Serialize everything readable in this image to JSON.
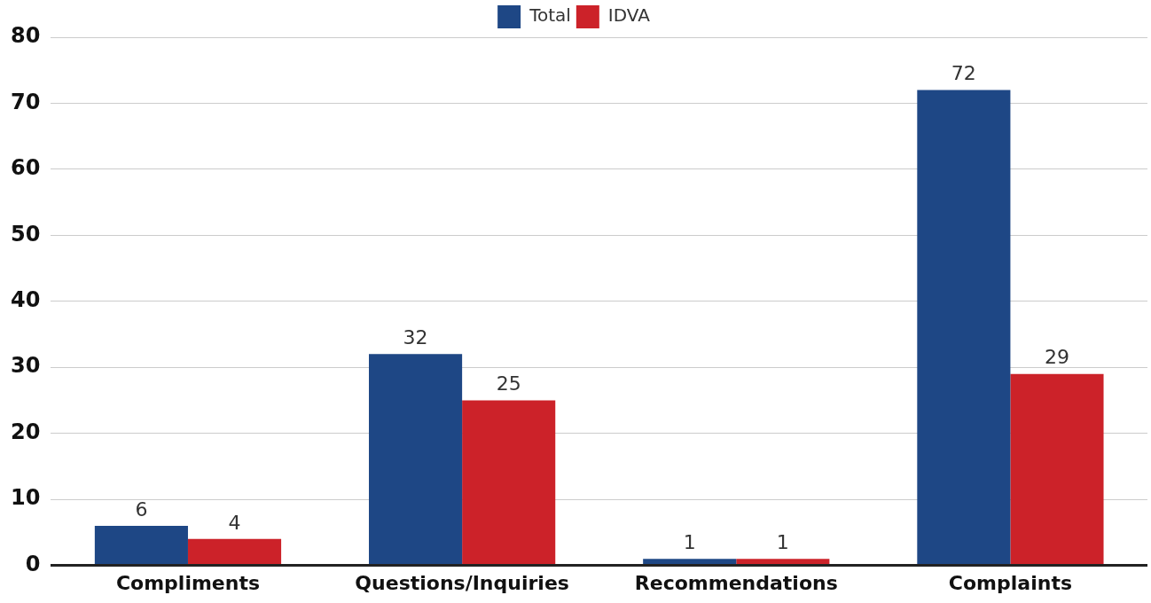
{
  "chart_data": {
    "type": "bar",
    "categories": [
      "Compliments",
      "Questions/Inquiries",
      "Recommendations",
      "Complaints"
    ],
    "series": [
      {
        "name": "Total",
        "color": "#1e4785",
        "values": [
          6,
          32,
          1,
          72
        ]
      },
      {
        "name": "IDVA",
        "color": "#cc2229",
        "values": [
          4,
          25,
          1,
          29
        ]
      }
    ],
    "ylim": [
      0,
      80
    ],
    "yticks": [
      0,
      10,
      20,
      30,
      40,
      50,
      60,
      70,
      80
    ],
    "grid": "y",
    "legend": "top",
    "data_labels": true
  }
}
